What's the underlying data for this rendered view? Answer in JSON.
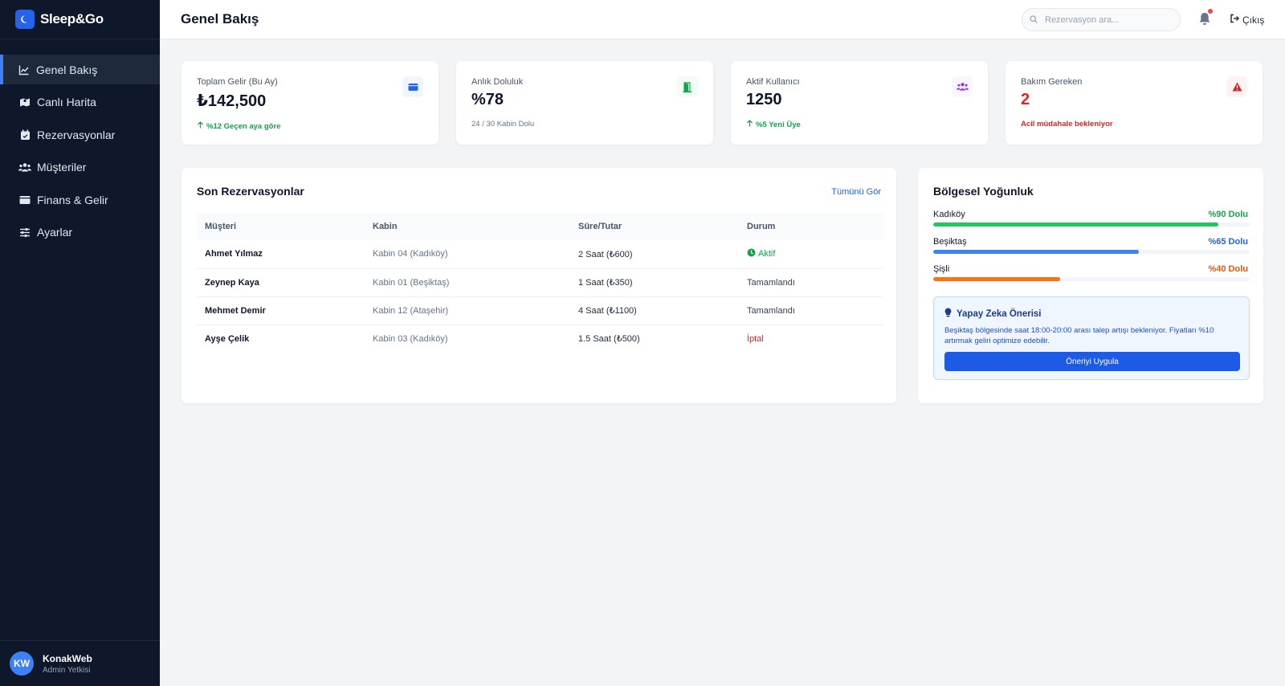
{
  "app": {
    "name": "Sleep&Go"
  },
  "sidebar": {
    "items": [
      {
        "label": "Genel Bakış",
        "icon": "chart-line-icon",
        "active": true
      },
      {
        "label": "Canlı Harita",
        "icon": "map-icon"
      },
      {
        "label": "Rezervasyonlar",
        "icon": "calendar-icon"
      },
      {
        "label": "Müşteriler",
        "icon": "users-icon"
      },
      {
        "label": "Finans & Gelir",
        "icon": "wallet-icon"
      },
      {
        "label": "Ayarlar",
        "icon": "sliders-icon"
      }
    ],
    "user": {
      "initials": "KW",
      "name": "KonakWeb",
      "role": "Admin Yetkisi"
    }
  },
  "header": {
    "title": "Genel Bakış",
    "search_placeholder": "Rezervasyon ara...",
    "logout_label": "Çıkış"
  },
  "stats": [
    {
      "label": "Toplam Gelir (Bu Ay)",
      "value": "₺142,500",
      "note": "%12 Geçen aya göre",
      "note_color": "#16a34a",
      "icon": "wallet-icon",
      "accent": "#2563eb"
    },
    {
      "label": "Anlık Doluluk",
      "value": "%78",
      "note": "24 / 30 Kabin Dolu",
      "note_color": "#64748b",
      "icon": "door-icon",
      "accent": "#16a34a"
    },
    {
      "label": "Aktif Kullanıcı",
      "value": "1250",
      "note": "%5 Yeni Üye",
      "note_color": "#16a34a",
      "icon": "users-icon",
      "accent": "#9333ea"
    },
    {
      "label": "Bakım Gereken",
      "value": "2",
      "note": "Acil müdahale bekleniyor",
      "note_color": "#dc2626",
      "icon": "warning-icon",
      "accent": "#dc2626"
    }
  ],
  "reservations": {
    "title": "Son Rezervasyonlar",
    "view_all": "Tümünü Gör",
    "columns": [
      "Müşteri",
      "Kabin",
      "Süre/Tutar",
      "Durum"
    ],
    "rows": [
      {
        "customer": "Ahmet Yılmaz",
        "cabin": "Kabin 04 (Kadıköy)",
        "duration": "2 Saat (₺600)",
        "status": "Aktif"
      },
      {
        "customer": "Zeynep Kaya",
        "cabin": "Kabin 01 (Beşiktaş)",
        "duration": "1 Saat (₺350)",
        "status": "Tamamlandı"
      },
      {
        "customer": "Mehmet Demir",
        "cabin": "Kabin 12 (Ataşehir)",
        "duration": "4 Saat (₺1100)",
        "status": "Tamamlandı"
      },
      {
        "customer": "Ayşe Çelik",
        "cabin": "Kabin 03 (Kadıköy)",
        "duration": "1.5 Saat (₺500)",
        "status": "İptal"
      }
    ]
  },
  "regional": {
    "title": "Bölgesel Yoğunluk",
    "regions": [
      {
        "name": "Kadıköy",
        "value_label": "%90 Dolu",
        "fill": 0.9,
        "color": "#22c55e",
        "text_color": "#16a34a"
      },
      {
        "name": "Beşiktaş",
        "value_label": "%65 Dolu",
        "fill": 0.65,
        "color": "#3b82f6",
        "text_color": "#2563eb"
      },
      {
        "name": "Şişli",
        "value_label": "%40 Dolu",
        "fill": 0.4,
        "color": "#f97316",
        "text_color": "#ea580c"
      }
    ],
    "ai": {
      "title": "Yapay Zeka Önerisi",
      "text": "Beşiktaş bölgesinde saat 18:00-20:00 arası talep artışı bekleniyor. Fiyatları %10 artırmak geliri optimize edebilir.",
      "button": "Öneriyi Uygula"
    }
  }
}
